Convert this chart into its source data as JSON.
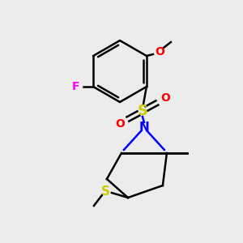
{
  "bg_color": "#ececec",
  "atom_colors": {
    "C": "#000000",
    "N": "#0000ff",
    "O": "#ff0000",
    "S": "#cccc00",
    "F": "#ff00ff"
  },
  "figsize": [
    3.0,
    3.0
  ],
  "dpi": 100
}
